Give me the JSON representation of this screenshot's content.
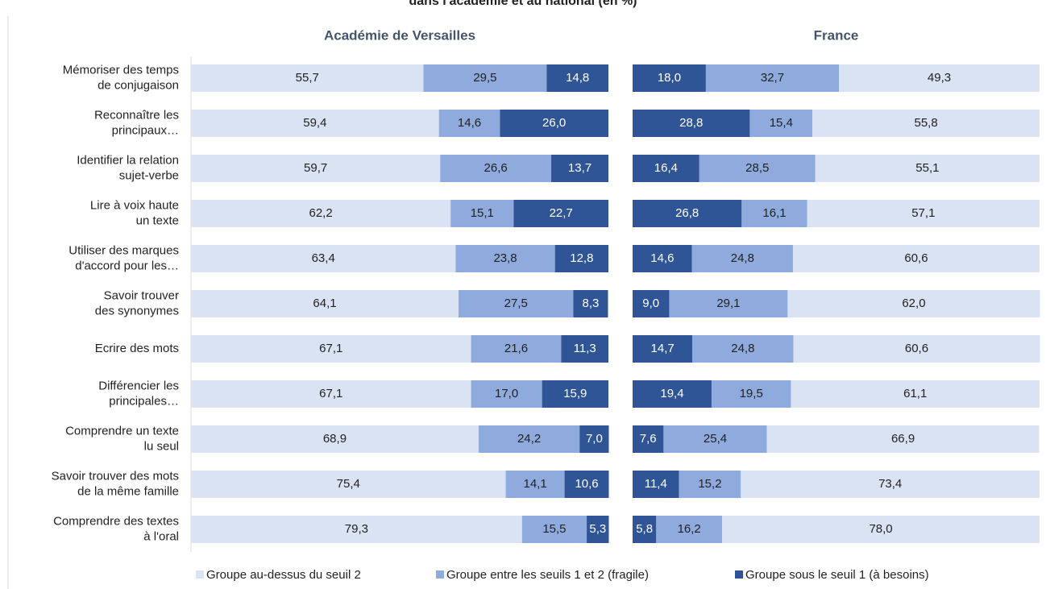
{
  "chart_data": {
    "type": "bar",
    "title": "dans l'académie et au national (en %)",
    "categories": [
      [
        "Mémoriser des temps",
        "de conjugaison"
      ],
      [
        "Reconnaître les",
        "principaux…"
      ],
      [
        "Identifier la relation",
        "sujet-verbe"
      ],
      [
        "Lire à voix haute",
        "un texte"
      ],
      [
        "Utiliser des marques",
        "d'accord pour les…"
      ],
      [
        "Savoir trouver",
        "des synonymes"
      ],
      [
        "Ecrire des mots"
      ],
      [
        "Différencier les",
        "principales…"
      ],
      [
        "Comprendre un texte",
        "lu seul"
      ],
      [
        "Savoir trouver des mots",
        "de la même famille"
      ],
      [
        "Comprendre des textes",
        "à l'oral"
      ]
    ],
    "legend": [
      {
        "name": "Groupe au-dessus du seuil 2",
        "color": "#dae3f3"
      },
      {
        "name": "Groupe entre les seuils 1 et 2 (fragile)",
        "color": "#8faadc"
      },
      {
        "name": "Groupe sous le seuil 1 (à besoins)",
        "color": "#2f5597"
      }
    ],
    "xlim": [
      0,
      100
    ],
    "panels": [
      {
        "title": "Académie de Versailles",
        "series": [
          {
            "values": [
              55.7,
              59.4,
              59.7,
              62.2,
              63.4,
              64.1,
              67.1,
              67.1,
              68.9,
              75.4,
              79.3
            ],
            "value_labels": [
              "55,7",
              "59,4",
              "59,7",
              "62,2",
              "63,4",
              "64,1",
              "67,1",
              "67,1",
              "68,9",
              "75,4",
              "79,3"
            ]
          },
          {
            "values": [
              29.5,
              14.6,
              26.6,
              15.1,
              23.8,
              27.5,
              21.6,
              17.0,
              24.2,
              14.1,
              15.5
            ],
            "value_labels": [
              "29,5",
              "14,6",
              "26,6",
              "15,1",
              "23,8",
              "27,5",
              "21,6",
              "17,0",
              "24,2",
              "14,1",
              "15,5"
            ]
          },
          {
            "values": [
              14.8,
              26.0,
              13.7,
              22.7,
              12.8,
              8.3,
              11.3,
              15.9,
              7.0,
              10.6,
              5.3
            ],
            "value_labels": [
              "14,8",
              "26,0",
              "13,7",
              "22,7",
              "12,8",
              "8,3",
              "11,3",
              "15,9",
              "7,0",
              "10,6",
              "5,3"
            ]
          }
        ]
      },
      {
        "title": "France",
        "series": [
          {
            "values": [
              49.3,
              55.8,
              55.1,
              57.1,
              60.6,
              62.0,
              60.6,
              61.1,
              66.9,
              73.4,
              78.0
            ],
            "value_labels": [
              "49,3",
              "55,8",
              "55,1",
              "57,1",
              "60,6",
              "62,0",
              "60,6",
              "61,1",
              "66,9",
              "73,4",
              "78,0"
            ]
          },
          {
            "values": [
              32.7,
              15.4,
              28.5,
              16.1,
              24.8,
              29.1,
              24.8,
              19.5,
              25.4,
              15.2,
              16.2
            ],
            "value_labels": [
              "32,7",
              "15,4",
              "28,5",
              "16,1",
              "24,8",
              "29,1",
              "24,8",
              "19,5",
              "25,4",
              "15,2",
              "16,2"
            ]
          },
          {
            "values": [
              18.0,
              28.8,
              16.4,
              26.8,
              14.6,
              9.0,
              14.7,
              19.4,
              7.6,
              11.4,
              5.8
            ],
            "value_labels": [
              "18,0",
              "28,8",
              "16,4",
              "26,8",
              "14,6",
              "9,0",
              "14,7",
              "19,4",
              "7,6",
              "11,4",
              "5,8"
            ]
          }
        ]
      }
    ]
  }
}
